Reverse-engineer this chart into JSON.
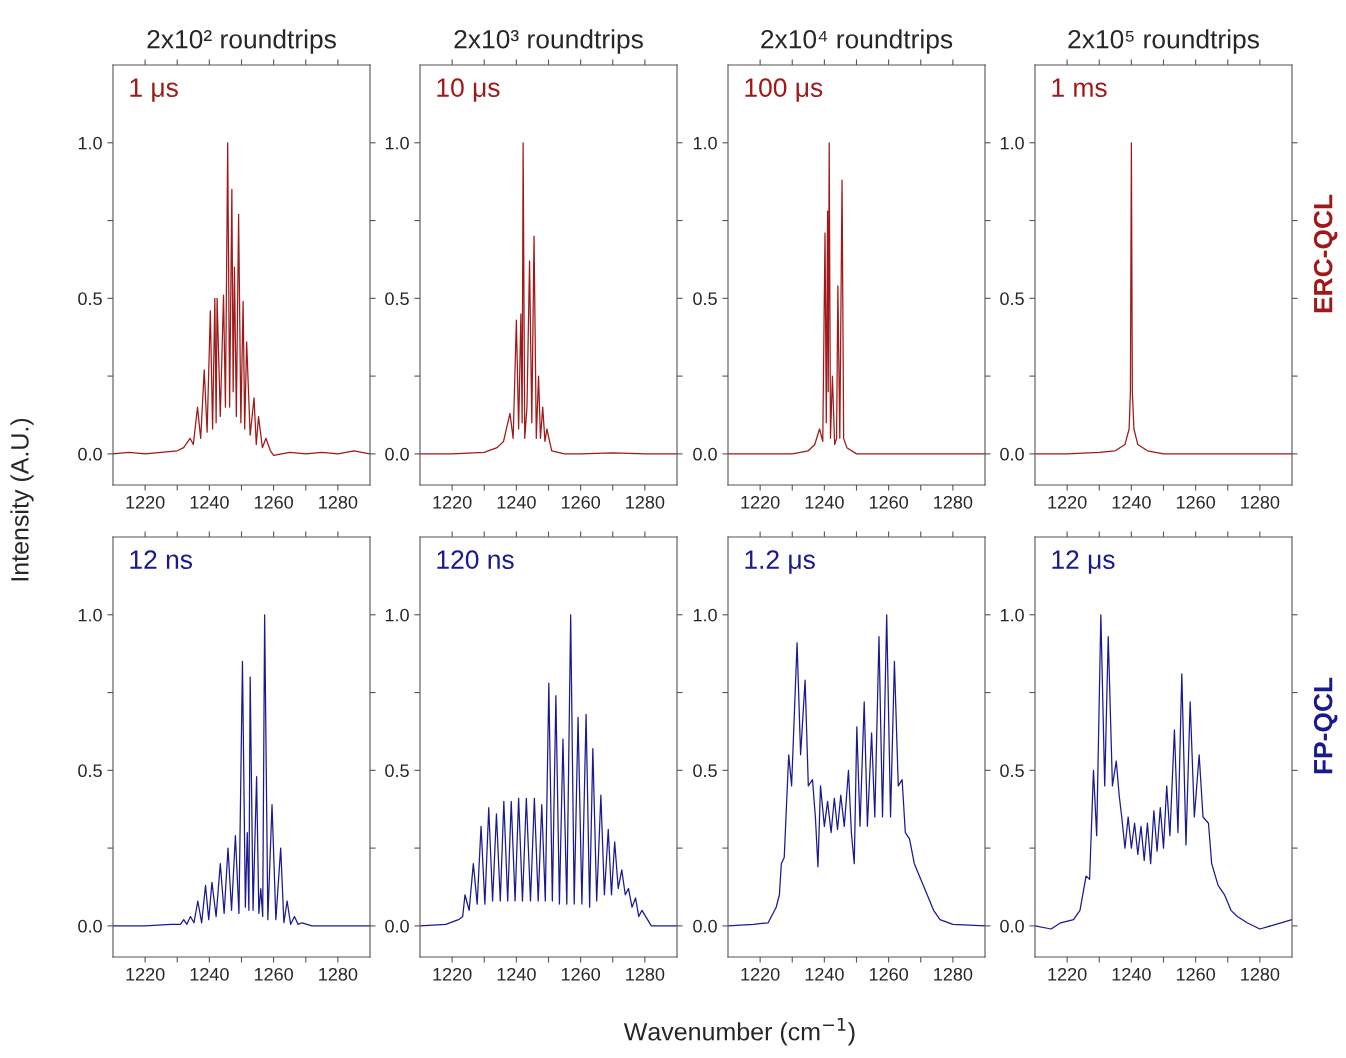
{
  "chart_data": [
    {
      "type": "line",
      "title": "2x10² roundtrips",
      "ylabel": "Intensity (A.U.)",
      "annotations": [
        "1 μs"
      ],
      "xlim": [
        1210,
        1290
      ],
      "ylim": [
        -0.1,
        1.25
      ],
      "xticks": [
        1220,
        {
          "value": 1230,
          "label": null
        },
        1240,
        {
          "value": 1250,
          "label": null
        },
        1260,
        {
          "value": 1270,
          "label": null
        },
        1280
      ],
      "yticks": [
        {
          "value": 0,
          "label": "0.0"
        },
        {
          "value": 0.25,
          "label": null
        },
        {
          "value": 0.5,
          "label": "0.5"
        },
        {
          "value": 0.75,
          "label": null
        },
        {
          "value": 1,
          "label": "1.0"
        }
      ],
      "x": [
        1210,
        1215,
        1220,
        1225,
        1230,
        1232,
        1234,
        1235,
        1236.3,
        1237.3,
        1238.4,
        1239.3,
        1240.3,
        1241.0,
        1241.7,
        1242.1,
        1242.4,
        1243.4,
        1244.4,
        1245.0,
        1245.7,
        1246.3,
        1247.0,
        1247.4,
        1247.8,
        1248.4,
        1249.1,
        1249.8,
        1250.5,
        1251.0,
        1251.6,
        1252.7,
        1253.9,
        1254.6,
        1255.3,
        1256.5,
        1257.6,
        1259,
        1260,
        1265,
        1270,
        1275,
        1280,
        1285,
        1290
      ],
      "series": [
        {
          "color": "#a01818",
          "values": [
            0,
            0.005,
            0,
            0.005,
            0.01,
            0.02,
            0.05,
            0.03,
            0.15,
            0.05,
            0.27,
            0.07,
            0.46,
            0.08,
            0.5,
            0.1,
            0.5,
            0.12,
            0.51,
            0.15,
            1.0,
            0.15,
            0.85,
            0.2,
            0.6,
            0.12,
            0.77,
            0.1,
            0.49,
            0.08,
            0.36,
            0.06,
            0.18,
            0.03,
            0.12,
            0.02,
            0.05,
            0.01,
            -0.005,
            0.005,
            0,
            0.005,
            0,
            0.01,
            0
          ]
        }
      ]
    },
    {
      "type": "line",
      "title": "2x10³ roundtrips",
      "annotations": [
        "10 μs"
      ],
      "xlim": [
        1210,
        1290
      ],
      "ylim": [
        -0.1,
        1.25
      ],
      "xticks": [
        1220,
        {
          "value": 1230,
          "label": null
        },
        1240,
        {
          "value": 1250,
          "label": null
        },
        1260,
        {
          "value": 1270,
          "label": null
        },
        1280
      ],
      "yticks": [
        {
          "value": 0,
          "label": "0.0"
        },
        {
          "value": 0.25,
          "label": null
        },
        {
          "value": 0.5,
          "label": "0.5"
        },
        {
          "value": 0.75,
          "label": null
        },
        {
          "value": 1,
          "label": "1.0"
        }
      ],
      "x": [
        1210,
        1220,
        1230,
        1234,
        1236,
        1238.0,
        1239,
        1240.0,
        1240.7,
        1241.4,
        1241.8,
        1242.1,
        1242.6,
        1243.3,
        1244.1,
        1244.8,
        1245.5,
        1246.2,
        1246.9,
        1247.5,
        1248.2,
        1248.9,
        1249.5,
        1251,
        1255,
        1260,
        1270,
        1280,
        1290
      ],
      "series": [
        {
          "color": "#a01818",
          "values": [
            0,
            0,
            0.005,
            0.02,
            0.04,
            0.13,
            0.05,
            0.43,
            0.08,
            0.45,
            0.1,
            1.0,
            0.05,
            0.15,
            0.62,
            0.1,
            0.7,
            0.05,
            0.25,
            0.05,
            0.15,
            0.04,
            0.08,
            0.01,
            0,
            0,
            0.003,
            0,
            0
          ]
        }
      ]
    },
    {
      "type": "line",
      "title": "2x10⁴ roundtrips",
      "annotations": [
        "100 μs"
      ],
      "xlim": [
        1210,
        1290
      ],
      "ylim": [
        -0.1,
        1.25
      ],
      "xticks": [
        1220,
        {
          "value": 1230,
          "label": null
        },
        1240,
        {
          "value": 1250,
          "label": null
        },
        1260,
        {
          "value": 1270,
          "label": null
        },
        1280
      ],
      "yticks": [
        {
          "value": 0,
          "label": "0.0"
        },
        {
          "value": 0.25,
          "label": null
        },
        {
          "value": 0.5,
          "label": "0.5"
        },
        {
          "value": 0.75,
          "label": null
        },
        {
          "value": 1,
          "label": "1.0"
        }
      ],
      "x": [
        1210,
        1220,
        1230,
        1235,
        1237,
        1238.5,
        1239.5,
        1240.2,
        1240.6,
        1241.0,
        1241.2,
        1241.5,
        1241.9,
        1242.5,
        1243.2,
        1243.8,
        1244.2,
        1244.8,
        1245.5,
        1246,
        1247,
        1250,
        1260,
        1270,
        1280,
        1290
      ],
      "series": [
        {
          "color": "#a01818",
          "values": [
            0,
            0,
            0,
            0.01,
            0.03,
            0.08,
            0.04,
            0.71,
            0.1,
            0.78,
            0.2,
            1.0,
            0.05,
            0.25,
            0.03,
            0.05,
            0.54,
            0.05,
            0.88,
            0.05,
            0.02,
            0,
            0,
            0,
            0,
            0
          ]
        }
      ]
    },
    {
      "type": "line",
      "title": "2x10⁵ roundtrips",
      "annotations": [
        "1 ms",
        "ERC-QCL"
      ],
      "xlim": [
        1210,
        1290
      ],
      "ylim": [
        -0.1,
        1.25
      ],
      "xticks": [
        1220,
        {
          "value": 1230,
          "label": null
        },
        1240,
        {
          "value": 1250,
          "label": null
        },
        1260,
        {
          "value": 1270,
          "label": null
        },
        1280
      ],
      "yticks": [
        {
          "value": 0,
          "label": "0.0"
        },
        {
          "value": 0.25,
          "label": null
        },
        {
          "value": 0.5,
          "label": "0.5"
        },
        {
          "value": 0.75,
          "label": null
        },
        {
          "value": 1,
          "label": "1.0"
        }
      ],
      "x": [
        1210,
        1220,
        1230,
        1235,
        1238,
        1239.3,
        1239.7,
        1240.0,
        1240.3,
        1240.8,
        1242,
        1245,
        1250,
        1260,
        1270,
        1280,
        1290
      ],
      "series": [
        {
          "color": "#a01818",
          "values": [
            0,
            0,
            0.005,
            0.01,
            0.03,
            0.08,
            0.2,
            1.0,
            0.2,
            0.08,
            0.03,
            0.01,
            0,
            0,
            0,
            0,
            0
          ]
        }
      ]
    },
    {
      "type": "line",
      "annotations": [
        "12 ns"
      ],
      "xlim": [
        1210,
        1290
      ],
      "ylim": [
        -0.1,
        1.25
      ],
      "xticks": [
        1220,
        {
          "value": 1230,
          "label": null
        },
        1240,
        {
          "value": 1250,
          "label": null
        },
        1260,
        {
          "value": 1270,
          "label": null
        },
        1280
      ],
      "yticks": [
        {
          "value": 0,
          "label": "0.0"
        },
        {
          "value": 0.25,
          "label": null
        },
        {
          "value": 0.5,
          "label": "0.5"
        },
        {
          "value": 0.75,
          "label": null
        },
        {
          "value": 1,
          "label": "1.0"
        }
      ],
      "x": [
        1210,
        1220,
        1228,
        1231,
        1232.0,
        1233,
        1234.1,
        1235.2,
        1236.4,
        1237.6,
        1238.8,
        1239.8,
        1240.8,
        1242.1,
        1243.4,
        1244.6,
        1245.8,
        1246.9,
        1248.1,
        1249.2,
        1250.3,
        1251.2,
        1251.8,
        1252.3,
        1252.7,
        1253.6,
        1254.7,
        1255.4,
        1256,
        1256.6,
        1257.2,
        1258.2,
        1259.5,
        1260.7,
        1262.2,
        1263.2,
        1264.2,
        1265.3,
        1266.5,
        1267.6,
        1268.8,
        1272,
        1280,
        1290
      ],
      "series": [
        {
          "color": "#1a1a90",
          "values": [
            0,
            0,
            0.005,
            0.005,
            0.02,
            0.005,
            0.03,
            0.01,
            0.08,
            0.01,
            0.13,
            0.02,
            0.14,
            0.03,
            0.2,
            0.04,
            0.25,
            0.05,
            0.29,
            0.04,
            0.85,
            0.06,
            0.3,
            0.05,
            0.8,
            0.05,
            0.48,
            0.04,
            0.12,
            0.03,
            1.0,
            0.02,
            0.39,
            0.02,
            0.25,
            0.01,
            0.08,
            0.005,
            0.03,
            0.005,
            0.01,
            0,
            0,
            0
          ]
        }
      ]
    },
    {
      "type": "line",
      "annotations": [
        "120 ns"
      ],
      "xlim": [
        1210,
        1290
      ],
      "ylim": [
        -0.1,
        1.25
      ],
      "xticks": [
        1220,
        {
          "value": 1230,
          "label": null
        },
        1240,
        {
          "value": 1250,
          "label": null
        },
        1260,
        {
          "value": 1270,
          "label": null
        },
        1280
      ],
      "yticks": [
        {
          "value": 0,
          "label": "0.0"
        },
        {
          "value": 0.25,
          "label": null
        },
        {
          "value": 0.5,
          "label": "0.5"
        },
        {
          "value": 0.75,
          "label": null
        },
        {
          "value": 1,
          "label": "1.0"
        }
      ],
      "x": [
        1210,
        1218,
        1222,
        1223.3,
        1224.0,
        1225.3,
        1226.6,
        1227.8,
        1229.0,
        1230.2,
        1231.4,
        1232.6,
        1233.8,
        1235.0,
        1236.1,
        1237.3,
        1238.4,
        1239.6,
        1240.7,
        1241.9,
        1243.1,
        1244.4,
        1245.6,
        1246.8,
        1247.9,
        1249.0,
        1250.1,
        1251.2,
        1252.3,
        1253.4,
        1254.5,
        1255.7,
        1256.9,
        1258.0,
        1259.2,
        1260.4,
        1261.7,
        1262.8,
        1263.8,
        1265.0,
        1266.3,
        1267.4,
        1268.6,
        1269.6,
        1270.6,
        1271.7,
        1272.8,
        1273.9,
        1274.9,
        1276.0,
        1277.1,
        1278.1,
        1279.1,
        1282,
        1290
      ],
      "series": [
        {
          "color": "#1a1a90",
          "values": [
            0,
            0.005,
            0.02,
            0.03,
            0.1,
            0.05,
            0.2,
            0.07,
            0.32,
            0.07,
            0.38,
            0.08,
            0.36,
            0.08,
            0.4,
            0.08,
            0.4,
            0.08,
            0.41,
            0.08,
            0.41,
            0.08,
            0.41,
            0.08,
            0.39,
            0.08,
            0.78,
            0.08,
            0.74,
            0.07,
            0.6,
            0.07,
            1.0,
            0.07,
            0.67,
            0.07,
            0.68,
            0.06,
            0.57,
            0.08,
            0.42,
            0.1,
            0.31,
            0.1,
            0.27,
            0.12,
            0.18,
            0.1,
            0.12,
            0.06,
            0.09,
            0.03,
            0.05,
            0.0,
            0
          ]
        }
      ]
    },
    {
      "type": "line",
      "xlabel": "Wavenumber (cm$^{−1}$)",
      "annotations": [
        "1.2 μs"
      ],
      "xlim": [
        1210,
        1290
      ],
      "ylim": [
        -0.1,
        1.25
      ],
      "xticks": [
        1220,
        {
          "value": 1230,
          "label": null
        },
        1240,
        {
          "value": 1250,
          "label": null
        },
        1260,
        {
          "value": 1270,
          "label": null
        },
        1280
      ],
      "yticks": [
        {
          "value": 0,
          "label": "0.0"
        },
        {
          "value": 0.25,
          "label": null
        },
        {
          "value": 0.5,
          "label": "0.5"
        },
        {
          "value": 0.75,
          "label": null
        },
        {
          "value": 1,
          "label": "1.0"
        }
      ],
      "x": [
        1210,
        1218,
        1222.5,
        1225,
        1226,
        1226.6,
        1227.5,
        1228.9,
        1229.8,
        1231.5,
        1232.6,
        1234.0,
        1235.0,
        1236.3,
        1237.2,
        1238.0,
        1238.8,
        1240.0,
        1241.0,
        1242.1,
        1243.1,
        1244.1,
        1245.1,
        1246.2,
        1247.5,
        1248.4,
        1249.3,
        1250.1,
        1251.1,
        1252.4,
        1253.4,
        1254.7,
        1255.7,
        1257.0,
        1258.1,
        1259.4,
        1260.6,
        1261.8,
        1263.0,
        1264.2,
        1265.2,
        1266.5,
        1268,
        1270,
        1272,
        1274,
        1276,
        1280,
        1290
      ],
      "series": [
        {
          "color": "#1a1a90",
          "values": [
            0,
            0.005,
            0.01,
            0.06,
            0.1,
            0.2,
            0.22,
            0.55,
            0.45,
            0.91,
            0.55,
            0.79,
            0.45,
            0.47,
            0.35,
            0.19,
            0.45,
            0.32,
            0.4,
            0.3,
            0.41,
            0.31,
            0.42,
            0.32,
            0.5,
            0.3,
            0.2,
            0.64,
            0.32,
            0.72,
            0.32,
            0.62,
            0.35,
            0.93,
            0.35,
            1.0,
            0.35,
            0.85,
            0.45,
            0.47,
            0.3,
            0.28,
            0.2,
            0.15,
            0.1,
            0.05,
            0.02,
            0.005,
            0
          ]
        }
      ]
    },
    {
      "type": "line",
      "annotations": [
        "12 μs",
        "FP-QCL"
      ],
      "xlim": [
        1210,
        1290
      ],
      "ylim": [
        -0.1,
        1.25
      ],
      "xticks": [
        1220,
        {
          "value": 1230,
          "label": null
        },
        1240,
        {
          "value": 1250,
          "label": null
        },
        1260,
        {
          "value": 1270,
          "label": null
        },
        1280
      ],
      "yticks": [
        {
          "value": 0,
          "label": "0.0"
        },
        {
          "value": 0.25,
          "label": null
        },
        {
          "value": 0.5,
          "label": "0.5"
        },
        {
          "value": 0.75,
          "label": null
        },
        {
          "value": 1,
          "label": "1.0"
        }
      ],
      "x": [
        1210,
        1215,
        1218,
        1222,
        1224,
        1225.9,
        1227,
        1228.2,
        1229.2,
        1230.5,
        1231.7,
        1232.8,
        1234.1,
        1235.3,
        1236.2,
        1237,
        1238,
        1239,
        1240,
        1241,
        1242,
        1243,
        1244,
        1245,
        1246,
        1247,
        1248,
        1249,
        1250,
        1251,
        1252,
        1253.4,
        1254.5,
        1255.7,
        1257.0,
        1258.3,
        1259.6,
        1261.1,
        1262.3,
        1264,
        1265,
        1267,
        1269,
        1271,
        1273,
        1276,
        1280,
        1285,
        1290
      ],
      "series": [
        {
          "color": "#1a1a90",
          "values": [
            0,
            -0.01,
            0.01,
            0.02,
            0.05,
            0.16,
            0.15,
            0.5,
            0.29,
            1.0,
            0.45,
            0.93,
            0.45,
            0.53,
            0.42,
            0.35,
            0.25,
            0.35,
            0.25,
            0.33,
            0.23,
            0.32,
            0.21,
            0.33,
            0.2,
            0.37,
            0.24,
            0.38,
            0.25,
            0.45,
            0.29,
            0.63,
            0.3,
            0.81,
            0.26,
            0.72,
            0.35,
            0.55,
            0.35,
            0.33,
            0.2,
            0.13,
            0.1,
            0.05,
            0.03,
            0.01,
            -0.01,
            0.005,
            0.02
          ]
        }
      ]
    }
  ]
}
